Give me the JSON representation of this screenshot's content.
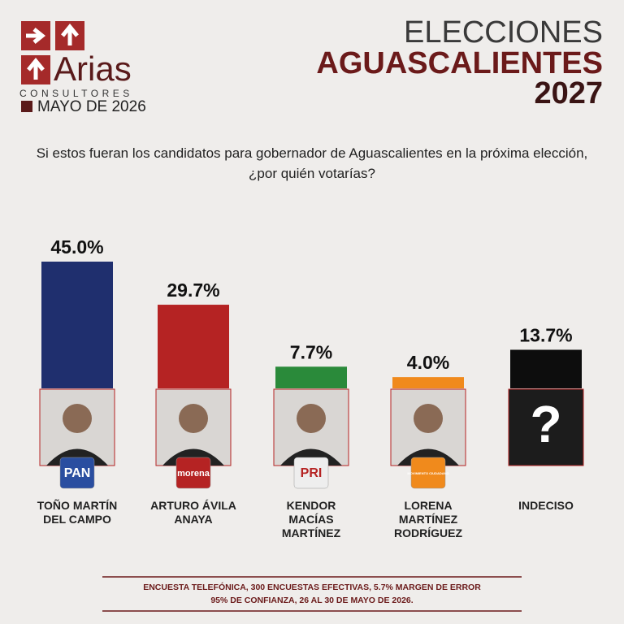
{
  "logo": {
    "name": "Arias",
    "subtitle": "CONSULTORES",
    "date": "MAYO DE 2026"
  },
  "chart_data": {
    "type": "bar",
    "title_lines": [
      "ELECCIONES",
      "AGUASCALIENTES",
      "2027"
    ],
    "question": "Si estos fueran los candidatos para gobernador de Aguascalientes en la próxima elección, ¿por quién votarías?",
    "categories": [
      "TOÑO MARTÍN DEL CAMPO",
      "ARTURO ÁVILA ANAYA",
      "KENDOR MACÍAS MARTÍNEZ",
      "LORENA MARTÍNEZ RODRÍGUEZ",
      "INDECISO"
    ],
    "values": [
      45.0,
      29.7,
      7.7,
      4.0,
      13.7
    ],
    "value_labels": [
      "45.0%",
      "29.7%",
      "7.7%",
      "4.0%",
      "13.7%"
    ],
    "colors": [
      "#1f2f6e",
      "#b52323",
      "#2a8a3a",
      "#f08a1c",
      "#0d0d0d"
    ],
    "party_logos": [
      "PAN",
      "morena",
      "PRI",
      "MOVIMIENTO CIUDADANO"
    ],
    "undecided_symbol": "?",
    "footnote": [
      "ENCUESTA TELEFÓNICA, 300 ENCUESTAS EFECTIVAS, 5.7%  MARGEN DE ERROR",
      "95% DE CONFIANZA, 26 AL 30 DE MAYO DE 2026."
    ]
  }
}
